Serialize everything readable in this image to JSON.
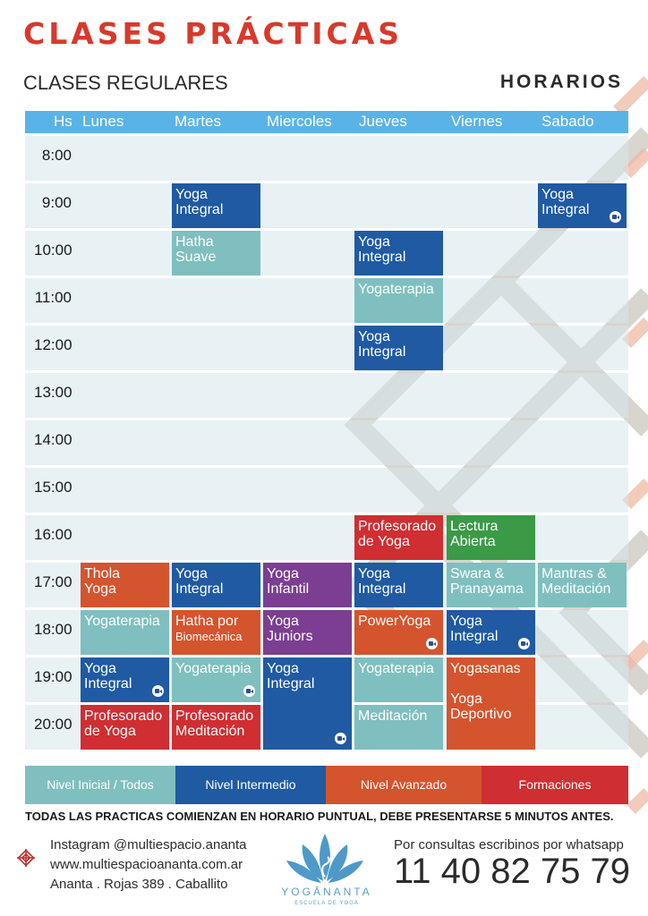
{
  "colors": {
    "header_blue": "#5ab3e6",
    "nivel_inicial": "#7fbfbf",
    "nivel_intermedio": "#1f5aa2",
    "nivel_avanzado": "#d4542e",
    "formaciones": "#cf2e32",
    "lectura": "#3a9a46",
    "infantil": "#7b3e91",
    "title_red": "#d73a2c"
  },
  "header": {
    "title": "CLASES PRÁCTICAS",
    "subtitle": "CLASES REGULARES",
    "horarios": "HORARIOS"
  },
  "schedule": {
    "hs_label": "Hs",
    "days": [
      "Lunes",
      "Martes",
      "Miercoles",
      "Jueves",
      "Viernes",
      "Sabado"
    ],
    "times": [
      "8:00",
      "9:00",
      "10:00",
      "11:00",
      "12:00",
      "13:00",
      "14:00",
      "15:00",
      "16:00",
      "17:00",
      "18:00",
      "19:00",
      "20:00"
    ],
    "classes": [
      {
        "day": 1,
        "start": 1,
        "span": 1,
        "color": "blue",
        "lines": [
          "Yoga",
          "Integral"
        ],
        "online": false
      },
      {
        "day": 5,
        "start": 1,
        "span": 1,
        "color": "blue",
        "lines": [
          "Yoga",
          "Integral"
        ],
        "online": true
      },
      {
        "day": 1,
        "start": 2,
        "span": 1,
        "color": "teal",
        "lines": [
          "Hatha",
          "Suave"
        ],
        "online": false
      },
      {
        "day": 3,
        "start": 2,
        "span": 1,
        "color": "blue",
        "lines": [
          "Yoga",
          "Integral"
        ],
        "online": false
      },
      {
        "day": 3,
        "start": 3,
        "span": 1,
        "color": "teal",
        "lines": [
          "Yogaterapia"
        ],
        "online": false
      },
      {
        "day": 3,
        "start": 4,
        "span": 1,
        "color": "blue",
        "lines": [
          "Yoga",
          "Integral"
        ],
        "online": false
      },
      {
        "day": 3,
        "start": 8,
        "span": 1,
        "color": "red",
        "lines": [
          "Profesorado",
          "de Yoga"
        ],
        "online": false
      },
      {
        "day": 4,
        "start": 8,
        "span": 1,
        "color": "green",
        "lines": [
          "Lectura",
          "Abierta"
        ],
        "online": false
      },
      {
        "day": 0,
        "start": 9,
        "span": 1,
        "color": "orange",
        "lines": [
          "Thola",
          "Yoga"
        ],
        "online": false
      },
      {
        "day": 1,
        "start": 9,
        "span": 1,
        "color": "blue",
        "lines": [
          "Yoga",
          "Integral"
        ],
        "online": false
      },
      {
        "day": 2,
        "start": 9,
        "span": 1,
        "color": "purple",
        "lines": [
          "Yoga",
          "Infantil"
        ],
        "online": false
      },
      {
        "day": 3,
        "start": 9,
        "span": 1,
        "color": "blue",
        "lines": [
          "Yoga",
          "Integral"
        ],
        "online": false
      },
      {
        "day": 4,
        "start": 9,
        "span": 1,
        "color": "teal",
        "lines": [
          "Swara &",
          "Pranayama"
        ],
        "online": false
      },
      {
        "day": 5,
        "start": 9,
        "span": 1,
        "color": "teal",
        "lines": [
          "Mantras &",
          "Meditación"
        ],
        "online": false
      },
      {
        "day": 0,
        "start": 10,
        "span": 1,
        "color": "teal",
        "lines": [
          "Yogaterapia"
        ],
        "online": false
      },
      {
        "day": 1,
        "start": 10,
        "span": 1,
        "color": "orange",
        "lines": [
          "Hatha por",
          "Biomecánica"
        ],
        "small_second": true,
        "online": false
      },
      {
        "day": 2,
        "start": 10,
        "span": 1,
        "color": "purple",
        "lines": [
          "Yoga",
          "Juniors"
        ],
        "online": false
      },
      {
        "day": 3,
        "start": 10,
        "span": 1,
        "color": "orange",
        "lines": [
          "PowerYoga"
        ],
        "online": true
      },
      {
        "day": 4,
        "start": 10,
        "span": 1,
        "color": "blue",
        "lines": [
          "Yoga",
          "Integral"
        ],
        "online": true
      },
      {
        "day": 0,
        "start": 11,
        "span": 1,
        "color": "blue",
        "lines": [
          "Yoga",
          "Integral"
        ],
        "online": true
      },
      {
        "day": 1,
        "start": 11,
        "span": 1,
        "color": "teal",
        "lines": [
          "Yogaterapia"
        ],
        "online": true
      },
      {
        "day": 2,
        "start": 11,
        "span": 2,
        "color": "blue",
        "lines": [
          "Yoga",
          "Integral"
        ],
        "online": true
      },
      {
        "day": 3,
        "start": 11,
        "span": 1,
        "color": "teal",
        "lines": [
          "Yogaterapia"
        ],
        "online": false
      },
      {
        "day": 4,
        "start": 11,
        "span": 2,
        "color": "orange",
        "lines": [
          "Yogasanas",
          "",
          "Yoga",
          "Deportivo"
        ],
        "online": false
      },
      {
        "day": 0,
        "start": 12,
        "span": 1,
        "color": "red",
        "lines": [
          "Profesorado",
          "de Yoga"
        ],
        "online": false
      },
      {
        "day": 1,
        "start": 12,
        "span": 1,
        "color": "red",
        "lines": [
          "Profesorado",
          "Meditación"
        ],
        "online": false
      },
      {
        "day": 3,
        "start": 12,
        "span": 1,
        "color": "teal",
        "lines": [
          "Meditación"
        ],
        "online": false
      }
    ]
  },
  "legend": [
    {
      "label": "Nivel Inicial / Todos",
      "color": "teal"
    },
    {
      "label": "Nivel Intermedio",
      "color": "blue"
    },
    {
      "label": "Nivel Avanzado",
      "color": "orange"
    },
    {
      "label": "Formaciones",
      "color": "red"
    }
  ],
  "notice": "TODAS LAS PRACTICAS COMIENZAN EN HORARIO PUNTUAL, DEBE PRESENTARSE 5 MINUTOS ANTES.",
  "contact": {
    "instagram": "Instagram @multiespacio.ananta",
    "web": "www.multiespacioananta.com.ar",
    "address": "Ananta . Rojas 389 . Caballito",
    "whatsapp_label": "Por consultas escribinos por whatsapp",
    "whatsapp_number": "11 40 82 75 79"
  },
  "logo": {
    "name": "YOGĀNANTA",
    "tagline": "ESCUELA DE YOGA",
    "icon": "lotus-swan-icon"
  },
  "decor_icon": "endless-knot-icon"
}
